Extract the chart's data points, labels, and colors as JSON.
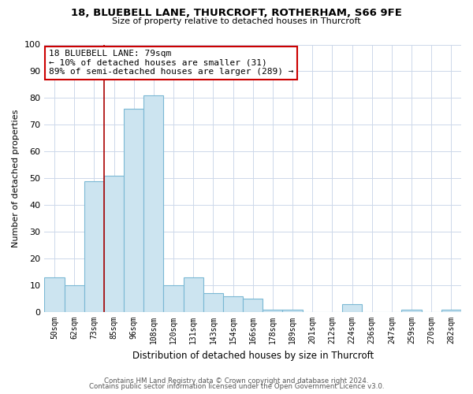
{
  "title_line1": "18, BLUEBELL LANE, THURCROFT, ROTHERHAM, S66 9FE",
  "title_line2": "Size of property relative to detached houses in Thurcroft",
  "xlabel": "Distribution of detached houses by size in Thurcroft",
  "ylabel": "Number of detached properties",
  "bin_labels": [
    "50sqm",
    "62sqm",
    "73sqm",
    "85sqm",
    "96sqm",
    "108sqm",
    "120sqm",
    "131sqm",
    "143sqm",
    "154sqm",
    "166sqm",
    "178sqm",
    "189sqm",
    "201sqm",
    "212sqm",
    "224sqm",
    "236sqm",
    "247sqm",
    "259sqm",
    "270sqm",
    "282sqm"
  ],
  "bar_heights": [
    13,
    10,
    49,
    51,
    76,
    81,
    10,
    13,
    7,
    6,
    5,
    1,
    1,
    0,
    0,
    3,
    0,
    0,
    1,
    0,
    1
  ],
  "bar_color": "#cce4f0",
  "bar_edge_color": "#7ab8d4",
  "highlight_line_color": "#aa0000",
  "highlight_bar_index": 3,
  "annotation_text": "18 BLUEBELL LANE: 79sqm\n← 10% of detached houses are smaller (31)\n89% of semi-detached houses are larger (289) →",
  "annotation_box_color": "#ffffff",
  "annotation_box_edge_color": "#cc0000",
  "ylim": [
    0,
    100
  ],
  "yticks": [
    0,
    10,
    20,
    30,
    40,
    50,
    60,
    70,
    80,
    90,
    100
  ],
  "footer_line1": "Contains HM Land Registry data © Crown copyright and database right 2024.",
  "footer_line2": "Contains public sector information licensed under the Open Government Licence v3.0.",
  "bg_color": "#ffffff",
  "grid_color": "#cdd8ea"
}
